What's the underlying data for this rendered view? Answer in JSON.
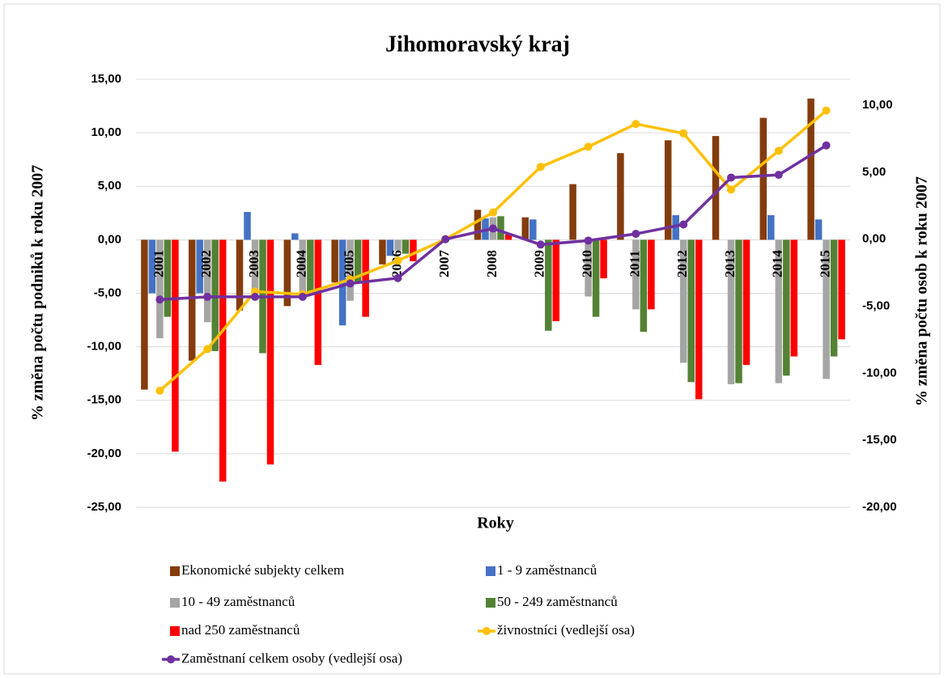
{
  "chart_data": {
    "type": "bar",
    "title": "Jihomoravský kraj",
    "x_label": "Roky",
    "y_label": "% změna počtu podniků k roku  2007",
    "y2_label": "% změna počtu osob k roku 2007",
    "categories": [
      "2001",
      "2002",
      "2003",
      "2004",
      "2005",
      "2006",
      "2007",
      "2008",
      "2009",
      "2010",
      "2011",
      "2012",
      "2013",
      "2014",
      "2015"
    ],
    "series": [
      {
        "name": "Ekonomické subjekty celkem",
        "color": "#843c0c",
        "type": "bar",
        "values": [
          -14.0,
          -11.3,
          -6.6,
          -6.2,
          -4.0,
          -2.3,
          0,
          2.8,
          2.1,
          5.2,
          8.1,
          9.3,
          9.7,
          11.4,
          13.2
        ]
      },
      {
        "name": "1 - 9 zaměstnanců",
        "color": "#4472c4",
        "type": "bar",
        "values": [
          -5.0,
          -5.0,
          2.6,
          0.6,
          -8.0,
          -1.5,
          0,
          2.0,
          1.9,
          0,
          0,
          2.3,
          0,
          2.3,
          1.9
        ]
      },
      {
        "name": "10 - 49 zaměstnanců",
        "color": "#a5a5a5",
        "type": "bar",
        "values": [
          -9.2,
          -7.7,
          -5.0,
          -5.5,
          -5.7,
          -1.0,
          0,
          2.1,
          0,
          -5.3,
          -6.5,
          -11.5,
          -13.5,
          -13.4,
          -13.0
        ]
      },
      {
        "name": "50 - 249 zaměstnanců",
        "color": "#548235",
        "type": "bar",
        "values": [
          -7.2,
          -10.4,
          -10.6,
          -5.0,
          -4.0,
          -1.3,
          0,
          2.2,
          -8.5,
          -7.2,
          -8.6,
          -13.3,
          -13.4,
          -12.7,
          -10.9
        ]
      },
      {
        "name": "nad 250 zaměstnanců",
        "color": "#ff0000",
        "type": "bar",
        "values": [
          -19.8,
          -22.6,
          -21.0,
          -11.7,
          -7.2,
          -2.0,
          0,
          0.5,
          -7.6,
          -3.6,
          -6.5,
          -14.9,
          -11.7,
          -10.9,
          -9.3
        ]
      },
      {
        "name": "živnostníci (vedlejší osa)",
        "color": "#ffc000",
        "type": "line",
        "axis": "y2",
        "values": [
          -11.3,
          -8.2,
          -3.9,
          -4.1,
          -3.0,
          -1.6,
          0,
          2.0,
          5.4,
          6.9,
          8.6,
          7.9,
          3.7,
          6.6,
          9.6
        ]
      },
      {
        "name": "Zaměstnaní celkem osoby (vedlejší osa)",
        "color": "#7030a0",
        "type": "line",
        "axis": "y2",
        "values": [
          -4.5,
          -4.3,
          -4.3,
          -4.3,
          -3.3,
          -2.9,
          0,
          0.8,
          -0.4,
          -0.1,
          0.4,
          1.1,
          4.6,
          4.8,
          7.0
        ]
      }
    ],
    "ylim": [
      -25,
      15
    ],
    "yticks": [
      {
        "value": 15,
        "label": "15,00"
      },
      {
        "value": 10,
        "label": "10,00"
      },
      {
        "value": 5,
        "label": "5,00"
      },
      {
        "value": 0,
        "label": "0,00"
      },
      {
        "value": -5,
        "label": "-5,00"
      },
      {
        "value": -10,
        "label": "-10,00"
      },
      {
        "value": -15,
        "label": "-15,00"
      },
      {
        "value": -20,
        "label": "-20,00"
      },
      {
        "value": -25,
        "label": "-25,00"
      }
    ],
    "y2lim": [
      -20,
      10
    ],
    "y2ticks": [
      {
        "value": 10,
        "label": "10,00"
      },
      {
        "value": 5,
        "label": "5,00"
      },
      {
        "value": 0,
        "label": "0,00"
      },
      {
        "value": -5,
        "label": "-5,00"
      },
      {
        "value": -10,
        "label": "-10,00"
      },
      {
        "value": -15,
        "label": "-15,00"
      },
      {
        "value": -20,
        "label": "-20,00"
      }
    ],
    "grid": true,
    "legend": "bottom"
  }
}
